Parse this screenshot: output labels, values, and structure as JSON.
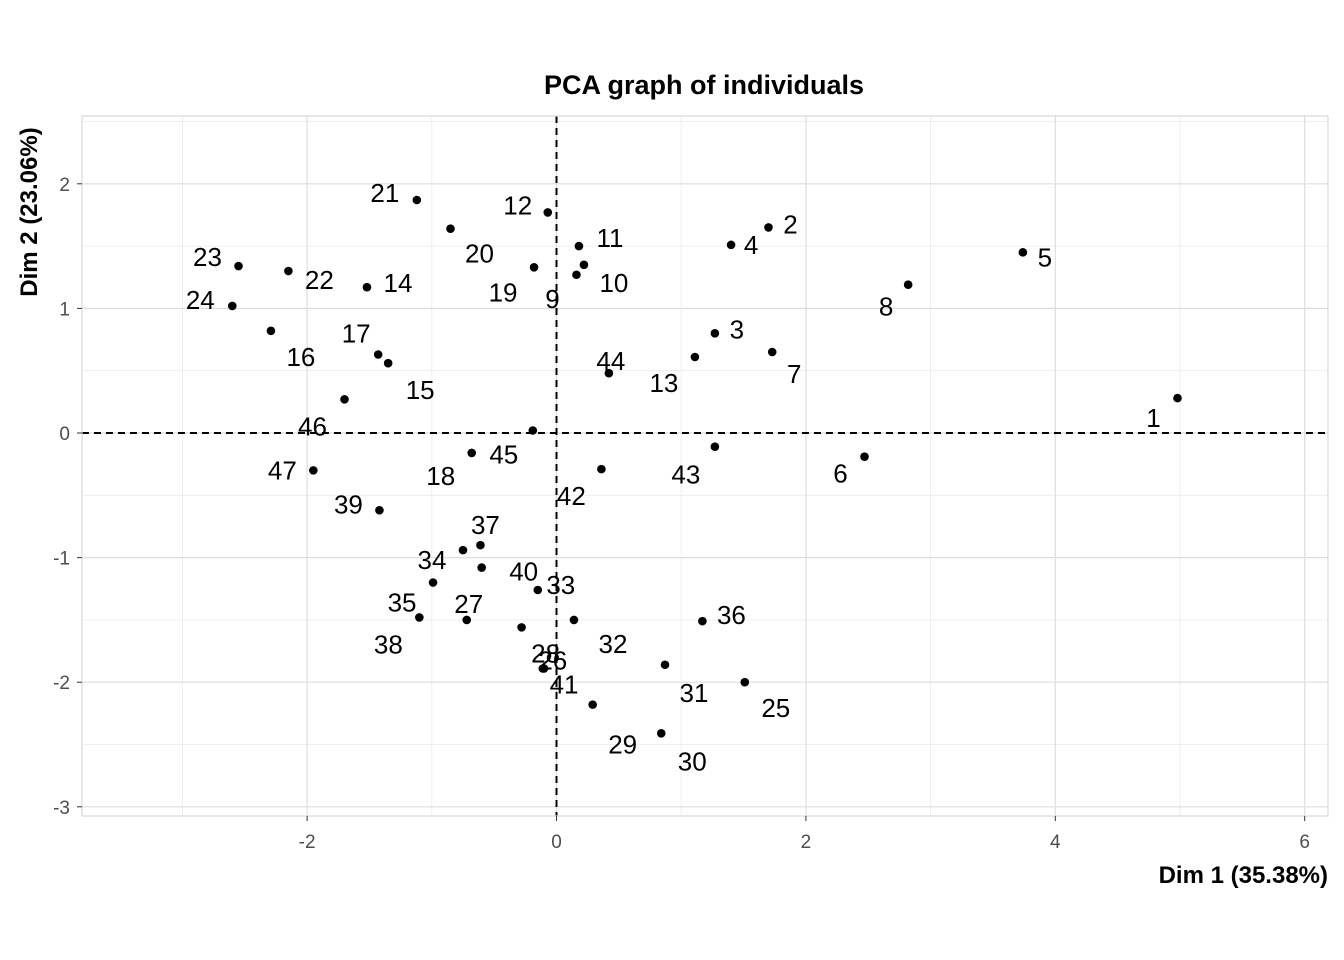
{
  "chart_data": {
    "type": "scatter",
    "title": "PCA graph of individuals",
    "xlabel": "Dim 1 (35.38%)",
    "ylabel": "Dim 2 (23.06%)",
    "xlim": [
      -3.8,
      6.2
    ],
    "ylim": [
      -3.05,
      2.55
    ],
    "xticks": [
      -2,
      0,
      2,
      4,
      6
    ],
    "yticks": [
      -3,
      -2,
      -1,
      0,
      1,
      2
    ],
    "xtick_labels": [
      "-2",
      "0",
      "2",
      "4",
      "6"
    ],
    "ytick_labels": [
      "-3",
      "-2",
      "-1",
      "0",
      "1",
      "2"
    ],
    "grid": true,
    "reference_lines": [
      "x = 0",
      "y = 0"
    ],
    "points": [
      {
        "label": "1",
        "x": 4.98,
        "y": 0.28
      },
      {
        "label": "2",
        "x": 1.7,
        "y": 1.65
      },
      {
        "label": "3",
        "x": 1.27,
        "y": 0.8
      },
      {
        "label": "4",
        "x": 1.4,
        "y": 1.51
      },
      {
        "label": "5",
        "x": 3.74,
        "y": 1.45
      },
      {
        "label": "6",
        "x": 2.47,
        "y": -0.19
      },
      {
        "label": "7",
        "x": 1.73,
        "y": 0.65
      },
      {
        "label": "8",
        "x": 2.82,
        "y": 1.19
      },
      {
        "label": "9",
        "x": 0.16,
        "y": 1.27
      },
      {
        "label": "10",
        "x": 0.22,
        "y": 1.35
      },
      {
        "label": "11",
        "x": 0.18,
        "y": 1.5
      },
      {
        "label": "12",
        "x": -0.07,
        "y": 1.77
      },
      {
        "label": "13",
        "x": 1.11,
        "y": 0.61
      },
      {
        "label": "14",
        "x": -1.52,
        "y": 1.17
      },
      {
        "label": "15",
        "x": -1.35,
        "y": 0.56
      },
      {
        "label": "16",
        "x": -2.29,
        "y": 0.82
      },
      {
        "label": "17",
        "x": -1.43,
        "y": 0.63
      },
      {
        "label": "18",
        "x": -0.68,
        "y": -0.16
      },
      {
        "label": "19",
        "x": -0.18,
        "y": 1.33
      },
      {
        "label": "20",
        "x": -0.85,
        "y": 1.64
      },
      {
        "label": "21",
        "x": -1.12,
        "y": 1.87
      },
      {
        "label": "22",
        "x": -2.15,
        "y": 1.3
      },
      {
        "label": "23",
        "x": -2.55,
        "y": 1.34
      },
      {
        "label": "24",
        "x": -2.6,
        "y": 1.02
      },
      {
        "label": "25",
        "x": 1.51,
        "y": -2.0
      },
      {
        "label": "26",
        "x": -0.11,
        "y": -1.89
      },
      {
        "label": "27",
        "x": -0.72,
        "y": -1.5
      },
      {
        "label": "28",
        "x": -0.28,
        "y": -1.56
      },
      {
        "label": "29",
        "x": 0.29,
        "y": -2.18
      },
      {
        "label": "30",
        "x": 0.84,
        "y": -2.41
      },
      {
        "label": "31",
        "x": 0.87,
        "y": -1.86
      },
      {
        "label": "32",
        "x": 0.14,
        "y": -1.5
      },
      {
        "label": "33",
        "x": -0.15,
        "y": -1.26
      },
      {
        "label": "34",
        "x": -0.75,
        "y": -0.94
      },
      {
        "label": "35",
        "x": -0.99,
        "y": -1.2
      },
      {
        "label": "36",
        "x": 1.17,
        "y": -1.51
      },
      {
        "label": "37",
        "x": -0.61,
        "y": -0.9
      },
      {
        "label": "38",
        "x": -1.1,
        "y": -1.48
      },
      {
        "label": "39",
        "x": -1.42,
        "y": -0.62
      },
      {
        "label": "40",
        "x": -0.6,
        "y": -1.08
      },
      {
        "label": "41",
        "x": -0.1,
        "y": -1.89
      },
      {
        "label": "42",
        "x": 0.36,
        "y": -0.29
      },
      {
        "label": "43",
        "x": 1.27,
        "y": -0.11
      },
      {
        "label": "44",
        "x": 0.42,
        "y": 0.48
      },
      {
        "label": "45",
        "x": -0.19,
        "y": 0.02
      },
      {
        "label": "46",
        "x": -1.7,
        "y": 0.27
      },
      {
        "label": "47",
        "x": -1.95,
        "y": -0.3
      }
    ]
  }
}
